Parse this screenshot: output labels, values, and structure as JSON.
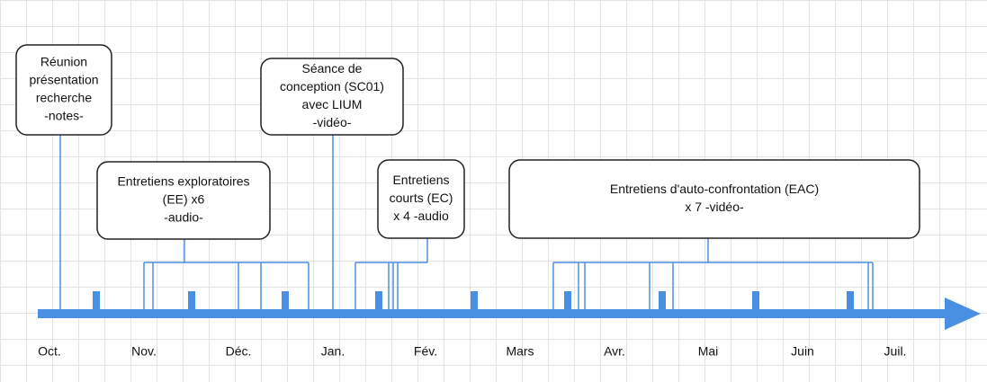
{
  "events": [
    {
      "lines": [
        "Réunion",
        "présentation",
        "recherche",
        "-notes-"
      ]
    },
    {
      "lines": [
        "Entretiens exploratoires",
        "(EE) x6",
        "-audio-"
      ]
    },
    {
      "lines": [
        "Séance de",
        "conception (SC01)",
        "avec LIUM",
        "-vidéo-"
      ]
    },
    {
      "lines": [
        "Entretiens",
        "courts (EC)",
        "x 4 -audio"
      ]
    },
    {
      "lines": [
        "Entretiens d'auto-confrontation (EAC)",
        "x 7 -vidéo-"
      ]
    }
  ],
  "months": [
    "Oct.",
    "Nov.",
    "Déc.",
    "Jan.",
    "Fév.",
    "Mars",
    "Avr.",
    "Mai",
    "Juin",
    "Juil."
  ]
}
